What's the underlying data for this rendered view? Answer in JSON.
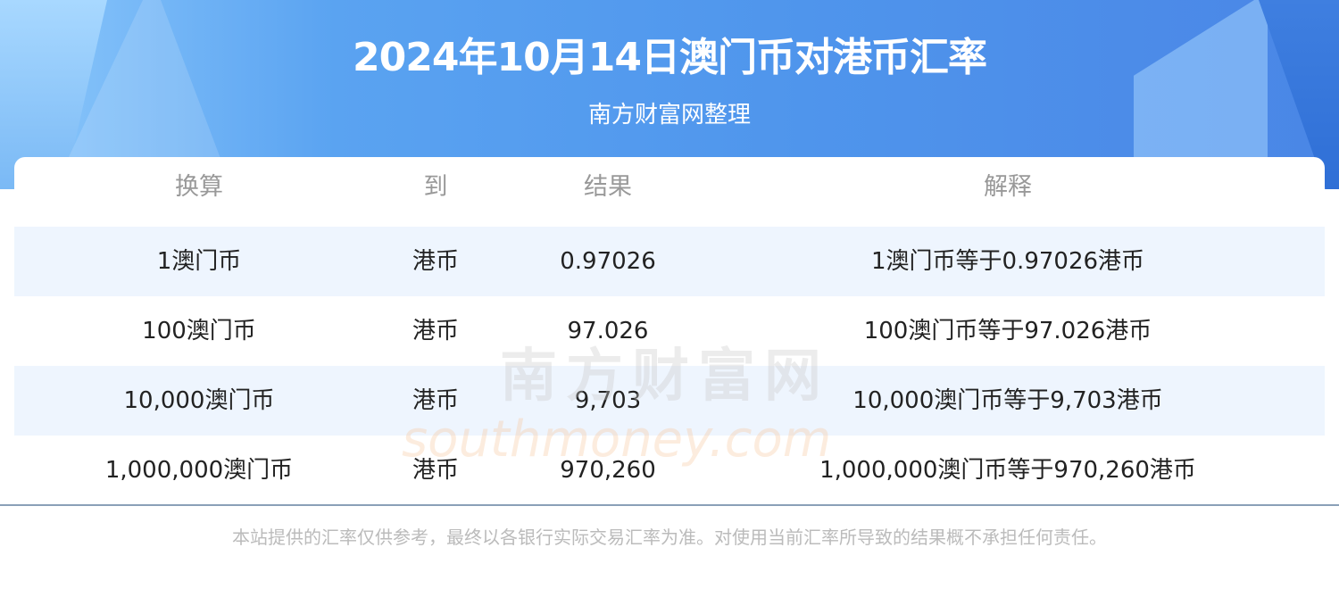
{
  "header": {
    "title": "2024年10月14日澳门币对港币汇率",
    "subtitle": "南方财富网整理"
  },
  "table": {
    "columns": [
      "换算",
      "到",
      "结果",
      "解释"
    ],
    "rows": [
      [
        "1澳门币",
        "港币",
        "0.97026",
        "1澳门币等于0.97026港币"
      ],
      [
        "100澳门币",
        "港币",
        "97.026",
        "100澳门币等于97.026港币"
      ],
      [
        "10,000澳门币",
        "港币",
        "9,703",
        "10,000澳门币等于9,703港币"
      ],
      [
        "1,000,000澳门币",
        "港币",
        "970,260",
        "1,000,000澳门币等于970,260港币"
      ]
    ]
  },
  "watermark": {
    "cn": "南方财富网",
    "en": "southmoney.com"
  },
  "footer": {
    "disclaimer": "本站提供的汇率仅供参考，最终以各银行实际交易汇率为准。对使用当前汇率所导致的结果概不承担任何责任。"
  },
  "colors": {
    "header_blue": "#4f95ec",
    "row_alt": "#eef5fe"
  }
}
